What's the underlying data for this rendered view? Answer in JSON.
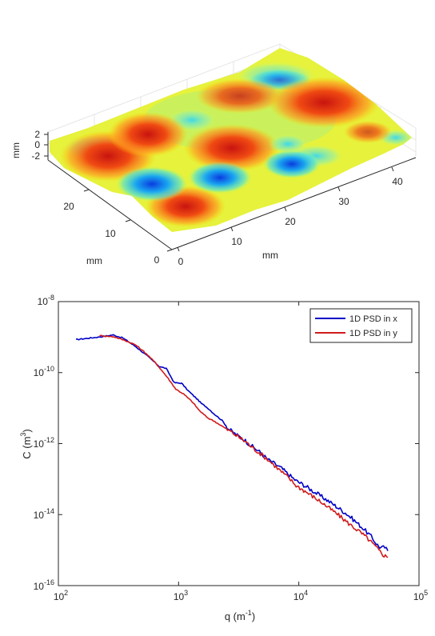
{
  "chart_data": [
    {
      "type": "surface3d",
      "xlabel": "mm",
      "ylabel": "mm",
      "zlabel": "mm",
      "x_ticks": [
        "0",
        "10",
        "20",
        "30",
        "40"
      ],
      "y_ticks": [
        "0",
        "10",
        "20"
      ],
      "z_ticks": [
        "2",
        "0",
        "-2"
      ],
      "xlim": [
        0,
        45
      ],
      "ylim": [
        0,
        30
      ],
      "zlim": [
        -3,
        2
      ],
      "colormap": "jet",
      "grid": true
    },
    {
      "type": "line",
      "xscale": "log",
      "yscale": "log",
      "xlabel": "q (m",
      "xlabel_sup": "-1",
      "xlabel_end": ")",
      "ylabel": "C (m",
      "ylabel_sup": "3",
      "ylabel_end": ")",
      "xlim": [
        100,
        100000
      ],
      "ylim": [
        1e-16,
        1e-08
      ],
      "x_ticks": [
        {
          "base": "10",
          "exp": "2"
        },
        {
          "base": "10",
          "exp": "3"
        },
        {
          "base": "10",
          "exp": "4"
        },
        {
          "base": "10",
          "exp": "5"
        }
      ],
      "y_ticks": [
        {
          "base": "10",
          "exp": "-8"
        },
        {
          "base": "10",
          "exp": "-10"
        },
        {
          "base": "10",
          "exp": "-12"
        },
        {
          "base": "10",
          "exp": "-14"
        },
        {
          "base": "10",
          "exp": "-16"
        }
      ],
      "legend": "top-right",
      "series": [
        {
          "name": "1D PSD in x",
          "color": "#0000c8",
          "points": [
            [
              140,
              8.5e-10
            ],
            [
              215,
              1e-09
            ],
            [
              285,
              1.15e-09
            ],
            [
              345,
              9.4e-10
            ],
            [
              440,
              5.4e-10
            ],
            [
              560,
              2.8e-10
            ],
            [
              690,
              1.5e-10
            ],
            [
              790,
              1.3e-10
            ],
            [
              920,
              5.2e-11
            ],
            [
              1060,
              5e-11
            ],
            [
              1200,
              3.1e-11
            ],
            [
              1380,
              2e-11
            ],
            [
              1550,
              1.35e-11
            ],
            [
              1750,
              1e-11
            ],
            [
              2000,
              6.6e-12
            ],
            [
              2300,
              4.5e-12
            ],
            [
              2600,
              2.6e-12
            ],
            [
              3000,
              1.8e-12
            ],
            [
              3500,
              1.3e-12
            ],
            [
              4000,
              8.8e-13
            ],
            [
              4700,
              5.9e-13
            ],
            [
              5500,
              3.6e-13
            ],
            [
              6300,
              2.7e-13
            ],
            [
              7200,
              2e-13
            ],
            [
              8300,
              1.3e-13
            ],
            [
              9500,
              9e-14
            ],
            [
              11000,
              6.8e-14
            ],
            [
              13000,
              4.7e-14
            ],
            [
              15500,
              3.2e-14
            ],
            [
              18000,
              2.3e-14
            ],
            [
              21000,
              1.6e-14
            ],
            [
              25000,
              1.05e-14
            ],
            [
              29000,
              6.8e-15
            ],
            [
              34000,
              4.2e-15
            ],
            [
              40000,
              2.4e-15
            ],
            [
              45000,
              1.4e-15
            ],
            [
              48000,
              1.15e-15
            ],
            [
              52000,
              1.2e-15
            ],
            [
              55000,
              9.5e-16
            ]
          ]
        },
        {
          "name": "1D PSD in y",
          "color": "#d01c1c",
          "points": [
            [
              220,
              1.1e-09
            ],
            [
              290,
              1.02e-09
            ],
            [
              360,
              8e-10
            ],
            [
              440,
              6e-10
            ],
            [
              540,
              3.4e-10
            ],
            [
              650,
              1.8e-10
            ],
            [
              800,
              7.6e-11
            ],
            [
              950,
              3.4e-11
            ],
            [
              1100,
              2.5e-11
            ],
            [
              1300,
              1.5e-11
            ],
            [
              1500,
              8.3e-12
            ],
            [
              1750,
              5.3e-12
            ],
            [
              2000,
              4.2e-12
            ],
            [
              2300,
              3.1e-12
            ],
            [
              2700,
              2.2e-12
            ],
            [
              3100,
              1.6e-12
            ],
            [
              3600,
              1.15e-12
            ],
            [
              4100,
              7.7e-13
            ],
            [
              4800,
              5.2e-13
            ],
            [
              5500,
              3.6e-13
            ],
            [
              6300,
              2.4e-13
            ],
            [
              7200,
              1.6e-13
            ],
            [
              8300,
              1.05e-13
            ],
            [
              9500,
              6.6e-14
            ],
            [
              11000,
              4.8e-14
            ],
            [
              13000,
              3.3e-14
            ],
            [
              15500,
              2.2e-14
            ],
            [
              18500,
              1.4e-14
            ],
            [
              22000,
              9e-15
            ],
            [
              26000,
              5.6e-15
            ],
            [
              31000,
              3.6e-15
            ],
            [
              37000,
              2.2e-15
            ],
            [
              43000,
              1.3e-15
            ],
            [
              50000,
              7.5e-16
            ],
            [
              55000,
              6.2e-16
            ]
          ]
        }
      ]
    }
  ]
}
